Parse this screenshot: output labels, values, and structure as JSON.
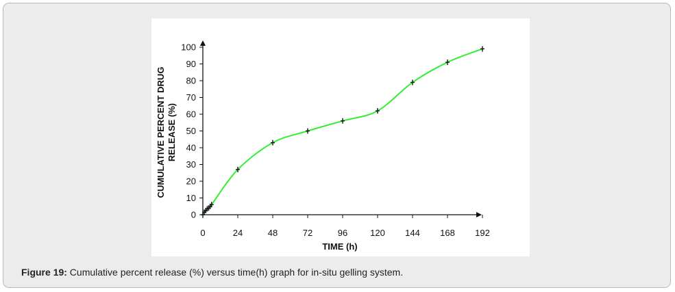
{
  "colors": {
    "line": "#33ee33",
    "marker": "#111111",
    "axis": "#111111"
  },
  "caption": {
    "label": "Figure 19:",
    "text": " Cumulative percent release (%) versus time(h) graph for in-situ gelling system."
  },
  "chart_data": {
    "type": "line",
    "title": "",
    "xlabel": "TIME (h)",
    "ylabel": [
      "CUMULATIVE PERCENT DRUG",
      "RELEASE (%)"
    ],
    "xticks": [
      0,
      24,
      48,
      72,
      96,
      120,
      144,
      168,
      192
    ],
    "yticks": [
      0,
      10,
      20,
      30,
      40,
      50,
      60,
      70,
      80,
      90,
      100
    ],
    "xlim": [
      0,
      192
    ],
    "ylim": [
      0,
      100
    ],
    "grid": false,
    "series": [
      {
        "name": "Cumulative release",
        "x": [
          0,
          1,
          2,
          3,
          4,
          5,
          6,
          24,
          48,
          72,
          96,
          120,
          144,
          168,
          192
        ],
        "y": [
          0,
          1.5,
          2.5,
          3.5,
          4,
          5,
          6,
          27,
          43,
          50,
          56,
          62,
          79,
          91,
          99
        ]
      }
    ]
  }
}
